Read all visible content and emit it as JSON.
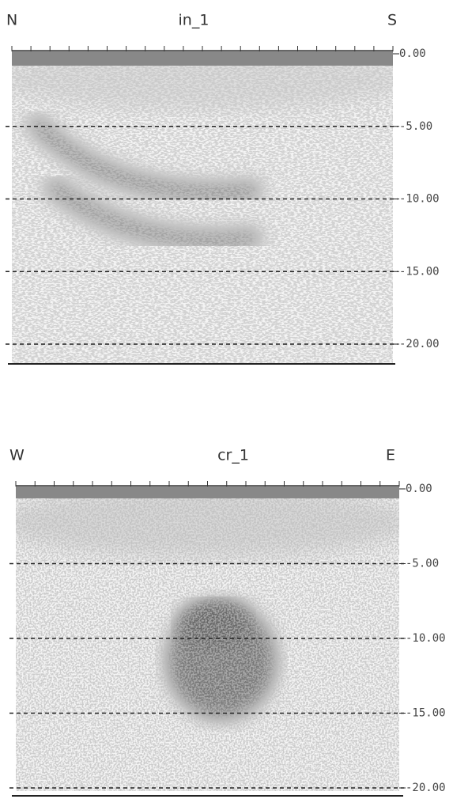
{
  "panels": [
    {
      "title": "in_1",
      "left": "N",
      "right": "S",
      "depth_ticks": [
        "0.00",
        "-5.00",
        "-10.00",
        "-15.00",
        "-20.00"
      ]
    },
    {
      "title": "cr_1",
      "left": "W",
      "right": "E",
      "depth_ticks": [
        "0.00",
        "-5.00",
        "-10.00",
        "-15.00",
        "-20.00"
      ]
    }
  ]
}
